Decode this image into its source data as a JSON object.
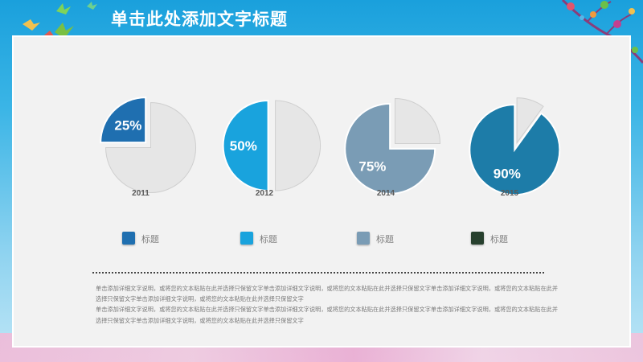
{
  "slide": {
    "title": "单击此处添加文字标题"
  },
  "pies": [
    {
      "percent_label": "25%",
      "year": "2011",
      "value": 0.25,
      "color": "#1f6fb0"
    },
    {
      "percent_label": "50%",
      "year": "2012",
      "value": 0.5,
      "color": "#19a3dd"
    },
    {
      "percent_label": "75%",
      "year": "2014",
      "value": 0.75,
      "color": "#7a9cb5"
    },
    {
      "percent_label": "90%",
      "year": "2015",
      "value": 0.9,
      "color": "#1d7ca8"
    }
  ],
  "legend": [
    {
      "label": "标题",
      "color": "#1f6fb0"
    },
    {
      "label": "标题",
      "color": "#19a3dd"
    },
    {
      "label": "标题",
      "color": "#7a9cb5"
    },
    {
      "label": "标题",
      "color": "#27402e"
    }
  ],
  "body": {
    "paragraph_1": "单击添加详细文字说明，或将您的文本粘贴在此并选择只保留文字单击添加详细文字说明，或将您的文本粘贴在此并选择只保留文字单击添加详细文字说明，或将您的文本粘贴在此并选择只保留文字单击添加详细文字说明，或将您的文本粘贴在此并选择只保留文字",
    "paragraph_2": "单击添加详细文字说明，或将您的文本粘贴在此并选择只保留文字单击添加详细文字说明，或将您的文本粘贴在此并选择只保留文字单击添加详细文字说明，或将您的文本粘贴在此并选择只保留文字单击添加详细文字说明，或将您的文本粘贴在此并选择只保留文字"
  }
}
